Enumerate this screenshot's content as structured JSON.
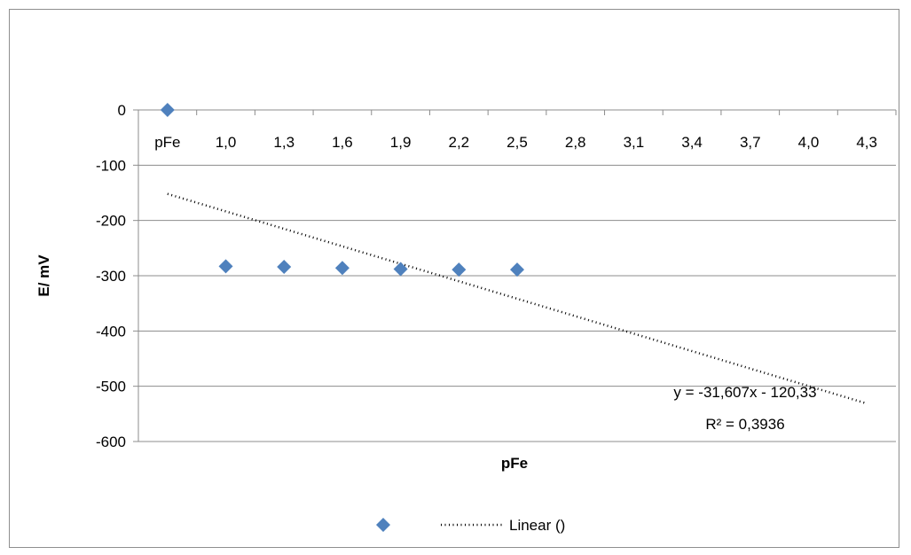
{
  "chart_data": {
    "type": "scatter",
    "title": "",
    "xlabel": "pFe",
    "ylabel": "E/ mV",
    "categories": [
      "pFe",
      "1,0",
      "1,3",
      "1,6",
      "1,9",
      "2,2",
      "2,5",
      "2,8",
      "3,1",
      "3,4",
      "3,7",
      "4,0",
      "4,3"
    ],
    "ylim": [
      -600,
      0
    ],
    "yticks": [
      "0",
      "-100",
      "-200",
      "-300",
      "-400",
      "-500",
      "-600"
    ],
    "grid": "horizontal",
    "legend_position": "bottom",
    "series": [
      {
        "type": "scatter",
        "marker": "diamond",
        "color": "#4f81bd",
        "x_index": [
          1,
          2,
          3,
          4,
          5,
          6,
          7
        ],
        "values": [
          0,
          -283,
          -284,
          -286,
          -288,
          -289,
          -289
        ]
      },
      {
        "type": "line",
        "name": "Linear ()",
        "style": "dotted",
        "color": "#000000",
        "slope": -31.607,
        "intercept": -120.33
      }
    ],
    "annotations": {
      "equation": "y = -31,607x - 120,33",
      "r_squared": "R² = 0,3936"
    }
  }
}
